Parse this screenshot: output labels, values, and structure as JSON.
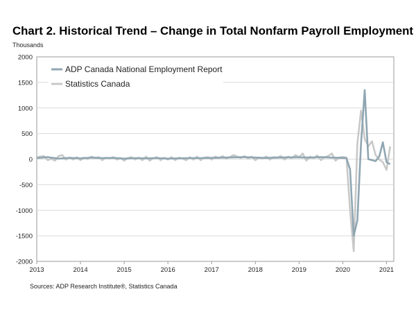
{
  "chart_data": {
    "type": "line",
    "title": "Chart 2. Historical Trend – Change in Total Nonfarm Payroll Employment",
    "ylabel": "Thousands",
    "xlabel": "",
    "ylim": [
      -2000,
      2000
    ],
    "yticks": [
      "2000",
      "1500",
      "1000",
      "500",
      "0",
      "-500",
      "-1000",
      "-1500",
      "-2000"
    ],
    "xticks": [
      "2013",
      "2014",
      "2015",
      "2016",
      "2017",
      "2018",
      "2019",
      "2020",
      "2021"
    ],
    "grid": true,
    "legend_position": "top-left",
    "source": "Sources: ADP Research Institute®, Statistics Canada",
    "series": [
      {
        "name": "ADP Canada National Employment Report",
        "color": "#8fa6b2",
        "points": [
          [
            "2013-01",
            20
          ],
          [
            "2013-04",
            40
          ],
          [
            "2013-07",
            10
          ],
          [
            "2013-10",
            25
          ],
          [
            "2014-01",
            15
          ],
          [
            "2014-04",
            30
          ],
          [
            "2014-07",
            20
          ],
          [
            "2014-10",
            25
          ],
          [
            "2015-01",
            10
          ],
          [
            "2015-04",
            20
          ],
          [
            "2015-07",
            15
          ],
          [
            "2015-10",
            20
          ],
          [
            "2016-01",
            10
          ],
          [
            "2016-04",
            15
          ],
          [
            "2016-07",
            20
          ],
          [
            "2016-10",
            20
          ],
          [
            "2017-01",
            25
          ],
          [
            "2017-04",
            30
          ],
          [
            "2017-07",
            35
          ],
          [
            "2017-10",
            40
          ],
          [
            "2018-01",
            30
          ],
          [
            "2018-04",
            25
          ],
          [
            "2018-07",
            30
          ],
          [
            "2018-10",
            35
          ],
          [
            "2019-01",
            35
          ],
          [
            "2019-04",
            30
          ],
          [
            "2019-07",
            40
          ],
          [
            "2019-10",
            30
          ],
          [
            "2020-01",
            25
          ],
          [
            "2020-02",
            20
          ],
          [
            "2020-03",
            -200
          ],
          [
            "2020-04",
            -1500
          ],
          [
            "2020-05",
            -1200
          ],
          [
            "2020-06",
            300
          ],
          [
            "2020-07",
            1350
          ],
          [
            "2020-08",
            0
          ],
          [
            "2020-09",
            -20
          ],
          [
            "2020-10",
            -40
          ],
          [
            "2020-11",
            50
          ],
          [
            "2020-12",
            330
          ],
          [
            "2021-01",
            -60
          ],
          [
            "2021-02",
            -100
          ]
        ]
      },
      {
        "name": "Statistics Canada",
        "color": "#c8c8c8",
        "points": [
          [
            "2013-01",
            40
          ],
          [
            "2013-02",
            50
          ],
          [
            "2013-03",
            60
          ],
          [
            "2013-04",
            -20
          ],
          [
            "2013-05",
            10
          ],
          [
            "2013-06",
            -30
          ],
          [
            "2013-07",
            60
          ],
          [
            "2013-08",
            80
          ],
          [
            "2013-09",
            -10
          ],
          [
            "2013-10",
            30
          ],
          [
            "2013-11",
            -10
          ],
          [
            "2013-12",
            40
          ],
          [
            "2014-01",
            -20
          ],
          [
            "2014-02",
            30
          ],
          [
            "2014-03",
            0
          ],
          [
            "2014-04",
            50
          ],
          [
            "2014-05",
            20
          ],
          [
            "2014-06",
            40
          ],
          [
            "2014-07",
            -20
          ],
          [
            "2014-08",
            30
          ],
          [
            "2014-09",
            10
          ],
          [
            "2014-10",
            40
          ],
          [
            "2014-11",
            -10
          ],
          [
            "2014-12",
            20
          ],
          [
            "2015-01",
            -30
          ],
          [
            "2015-02",
            20
          ],
          [
            "2015-03",
            40
          ],
          [
            "2015-04",
            -10
          ],
          [
            "2015-05",
            30
          ],
          [
            "2015-06",
            -20
          ],
          [
            "2015-07",
            50
          ],
          [
            "2015-08",
            -30
          ],
          [
            "2015-09",
            20
          ],
          [
            "2015-10",
            40
          ],
          [
            "2015-11",
            -20
          ],
          [
            "2015-12",
            30
          ],
          [
            "2016-01",
            -10
          ],
          [
            "2016-02",
            40
          ],
          [
            "2016-03",
            -20
          ],
          [
            "2016-04",
            30
          ],
          [
            "2016-05",
            10
          ],
          [
            "2016-06",
            -20
          ],
          [
            "2016-07",
            40
          ],
          [
            "2016-08",
            -10
          ],
          [
            "2016-09",
            50
          ],
          [
            "2016-10",
            -20
          ],
          [
            "2016-11",
            30
          ],
          [
            "2016-12",
            40
          ],
          [
            "2017-01",
            -10
          ],
          [
            "2017-02",
            50
          ],
          [
            "2017-03",
            20
          ],
          [
            "2017-04",
            60
          ],
          [
            "2017-05",
            10
          ],
          [
            "2017-06",
            40
          ],
          [
            "2017-07",
            80
          ],
          [
            "2017-08",
            50
          ],
          [
            "2017-09",
            20
          ],
          [
            "2017-10",
            60
          ],
          [
            "2017-11",
            10
          ],
          [
            "2017-12",
            50
          ],
          [
            "2018-01",
            -20
          ],
          [
            "2018-02",
            30
          ],
          [
            "2018-03",
            10
          ],
          [
            "2018-04",
            50
          ],
          [
            "2018-05",
            -10
          ],
          [
            "2018-06",
            40
          ],
          [
            "2018-07",
            30
          ],
          [
            "2018-08",
            60
          ],
          [
            "2018-09",
            -10
          ],
          [
            "2018-10",
            50
          ],
          [
            "2018-11",
            20
          ],
          [
            "2018-12",
            80
          ],
          [
            "2019-01",
            40
          ],
          [
            "2019-02",
            110
          ],
          [
            "2019-03",
            -30
          ],
          [
            "2019-04",
            50
          ],
          [
            "2019-05",
            20
          ],
          [
            "2019-06",
            70
          ],
          [
            "2019-07",
            -20
          ],
          [
            "2019-08",
            40
          ],
          [
            "2019-09",
            60
          ],
          [
            "2019-10",
            110
          ],
          [
            "2019-11",
            -30
          ],
          [
            "2019-12",
            30
          ],
          [
            "2020-01",
            40
          ],
          [
            "2020-02",
            30
          ],
          [
            "2020-03",
            -1000
          ],
          [
            "2020-04",
            -1800
          ],
          [
            "2020-05",
            300
          ],
          [
            "2020-06",
            950
          ],
          [
            "2020-07",
            400
          ],
          [
            "2020-08",
            250
          ],
          [
            "2020-09",
            350
          ],
          [
            "2020-10",
            80
          ],
          [
            "2020-11",
            -10
          ],
          [
            "2020-12",
            -60
          ],
          [
            "2021-01",
            -210
          ],
          [
            "2021-02",
            250
          ]
        ]
      }
    ]
  }
}
